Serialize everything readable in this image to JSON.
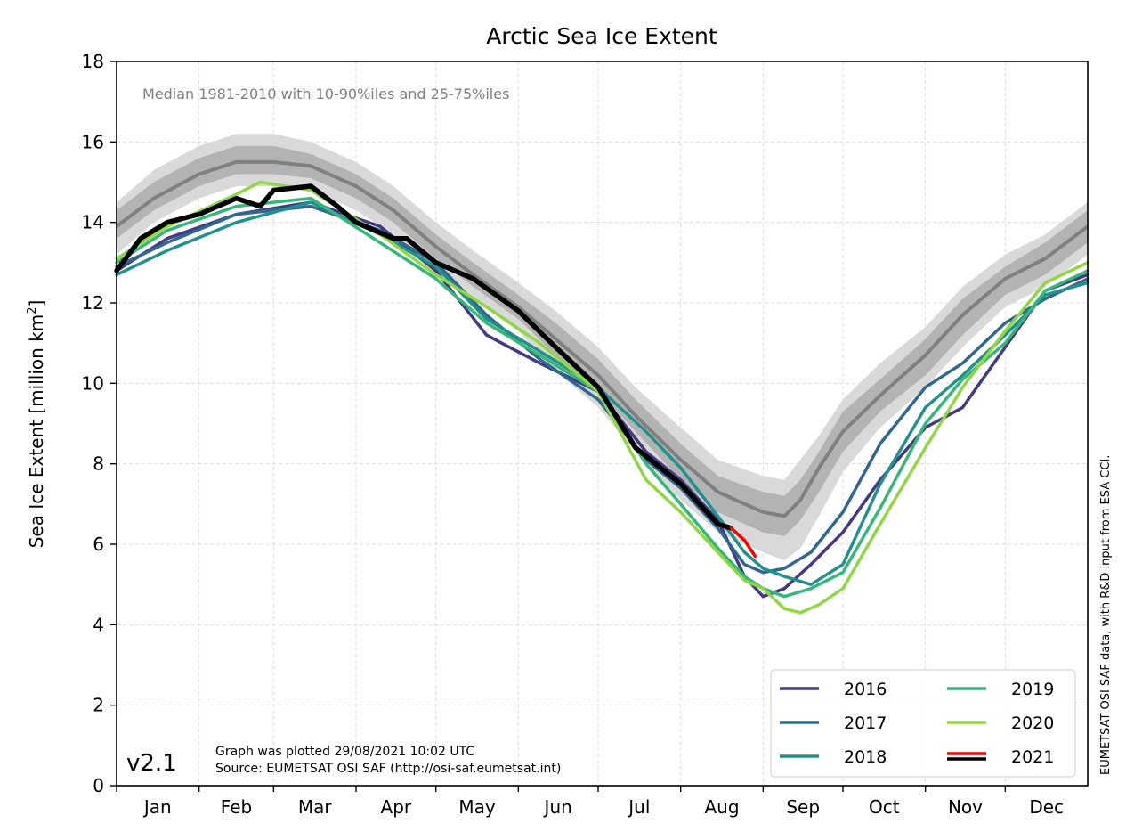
{
  "chart_data": {
    "type": "line",
    "title": "Arctic Sea Ice Extent",
    "subtitle": "Median 1981-2010 with 10-90%iles and 25-75%iles",
    "ylabel_prefix": "Sea Ice Extent [million km",
    "ylabel_sup": "2",
    "ylabel_suffix": "]",
    "ylim": [
      0,
      18
    ],
    "yticks": [
      0,
      2,
      4,
      6,
      8,
      10,
      12,
      14,
      16,
      18
    ],
    "xlim": [
      1,
      366
    ],
    "month_labels": [
      "Jan",
      "Feb",
      "Mar",
      "Apr",
      "May",
      "Jun",
      "Jul",
      "Aug",
      "Sep",
      "Oct",
      "Nov",
      "Dec"
    ],
    "month_starts": [
      1,
      32,
      60,
      91,
      121,
      152,
      182,
      213,
      244,
      274,
      305,
      335
    ],
    "grid": true,
    "legend_position": "bottom-right",
    "version_label": "v2.1",
    "plotted_note": "Graph was plotted 29/08/2021 10:02 UTC",
    "source_note": "Source: EUMETSAT OSI SAF (http://osi-saf.eumetsat.int)",
    "side_credit": "EUMETSAT OSI SAF data, with R&D input from ESA CCI.",
    "climatology": {
      "day": [
        1,
        15,
        32,
        46,
        60,
        74,
        91,
        105,
        121,
        135,
        152,
        166,
        182,
        196,
        213,
        227,
        244,
        252,
        258,
        265,
        274,
        288,
        305,
        319,
        335,
        350,
        366
      ],
      "median": [
        13.9,
        14.6,
        15.2,
        15.5,
        15.5,
        15.4,
        14.9,
        14.3,
        13.4,
        12.7,
        11.9,
        11.1,
        10.2,
        9.2,
        8.1,
        7.3,
        6.8,
        6.7,
        7.1,
        7.9,
        8.8,
        9.7,
        10.7,
        11.7,
        12.6,
        13.1,
        13.9
      ],
      "p25": [
        13.6,
        14.3,
        14.9,
        15.2,
        15.2,
        15.1,
        14.6,
        14.0,
        13.1,
        12.4,
        11.6,
        10.7,
        9.8,
        8.8,
        7.6,
        6.8,
        6.3,
        6.2,
        6.6,
        7.3,
        8.3,
        9.3,
        10.2,
        11.2,
        12.2,
        12.7,
        13.5
      ],
      "p75": [
        14.3,
        15.0,
        15.6,
        15.9,
        15.9,
        15.7,
        15.2,
        14.6,
        13.7,
        13.0,
        12.2,
        11.5,
        10.6,
        9.6,
        8.5,
        7.7,
        7.3,
        7.2,
        7.6,
        8.3,
        9.3,
        10.1,
        11.1,
        12.1,
        12.9,
        13.5,
        14.3
      ],
      "p10": [
        13.2,
        14.0,
        14.6,
        14.9,
        14.9,
        14.8,
        14.3,
        13.7,
        12.8,
        12.1,
        11.3,
        10.3,
        9.4,
        8.3,
        7.1,
        6.3,
        5.8,
        5.6,
        5.9,
        6.7,
        7.8,
        8.9,
        9.9,
        10.9,
        11.9,
        12.4,
        13.2
      ],
      "p90": [
        14.5,
        15.3,
        15.9,
        16.2,
        16.2,
        16.0,
        15.5,
        14.9,
        14.0,
        13.3,
        12.5,
        11.8,
        10.9,
        9.9,
        8.9,
        8.1,
        7.7,
        7.6,
        8.1,
        8.7,
        9.6,
        10.5,
        11.4,
        12.4,
        13.2,
        13.7,
        14.5
      ]
    },
    "series": [
      {
        "name": "2016",
        "color": "#443983",
        "day": [
          1,
          20,
          46,
          74,
          100,
          121,
          140,
          160,
          182,
          200,
          213,
          227,
          237,
          244,
          252,
          262,
          274,
          288,
          305,
          319,
          335,
          350,
          366
        ],
        "values": [
          12.8,
          13.6,
          14.2,
          14.5,
          13.9,
          12.8,
          11.2,
          10.5,
          9.8,
          8.3,
          7.6,
          6.6,
          5.2,
          4.7,
          4.9,
          5.5,
          6.3,
          7.6,
          8.9,
          9.4,
          10.9,
          12.3,
          12.7
        ]
      },
      {
        "name": "2017",
        "color": "#31688e",
        "day": [
          1,
          20,
          46,
          74,
          100,
          121,
          140,
          160,
          182,
          200,
          213,
          227,
          237,
          244,
          252,
          262,
          274,
          288,
          305,
          319,
          335,
          350,
          366
        ],
        "values": [
          12.9,
          13.5,
          14.2,
          14.4,
          13.8,
          13.0,
          11.7,
          10.6,
          9.6,
          8.1,
          7.4,
          6.4,
          5.5,
          5.3,
          5.4,
          5.8,
          6.8,
          8.5,
          9.9,
          10.5,
          11.5,
          12.1,
          12.6
        ]
      },
      {
        "name": "2018",
        "color": "#21918c",
        "day": [
          1,
          20,
          46,
          74,
          100,
          121,
          140,
          160,
          182,
          200,
          213,
          227,
          237,
          244,
          252,
          262,
          274,
          288,
          305,
          319,
          335,
          350,
          366
        ],
        "values": [
          12.7,
          13.3,
          14.0,
          14.5,
          13.7,
          12.9,
          11.6,
          10.8,
          9.9,
          8.8,
          7.9,
          6.7,
          5.8,
          5.4,
          5.2,
          5.0,
          5.5,
          7.5,
          9.4,
          10.2,
          11.2,
          12.2,
          12.5
        ]
      },
      {
        "name": "2019",
        "color": "#35b779",
        "day": [
          1,
          20,
          46,
          74,
          100,
          121,
          140,
          160,
          182,
          200,
          213,
          227,
          237,
          244,
          252,
          262,
          274,
          288,
          305,
          319,
          335,
          350,
          366
        ],
        "values": [
          13.0,
          13.8,
          14.4,
          14.6,
          13.5,
          12.6,
          11.5,
          10.7,
          9.8,
          8.0,
          7.0,
          5.9,
          5.2,
          4.9,
          4.7,
          4.9,
          5.3,
          6.9,
          9.0,
          10.1,
          11.0,
          12.3,
          12.8
        ]
      },
      {
        "name": "2020",
        "color": "#90d743",
        "day": [
          1,
          20,
          46,
          55,
          74,
          100,
          121,
          140,
          160,
          182,
          200,
          213,
          227,
          237,
          244,
          252,
          258,
          265,
          274,
          288,
          305,
          319,
          335,
          350,
          366
        ],
        "values": [
          13.1,
          13.9,
          14.7,
          15.0,
          14.8,
          13.7,
          12.7,
          11.9,
          11.0,
          9.8,
          7.6,
          6.8,
          5.8,
          5.1,
          4.9,
          4.4,
          4.3,
          4.5,
          4.9,
          6.5,
          8.4,
          9.9,
          11.3,
          12.5,
          13.0
        ]
      },
      {
        "name": "2021",
        "color": "#000000",
        "legend_swatch": [
          "#ff0000",
          "#000000"
        ],
        "day": [
          1,
          10,
          20,
          32,
          46,
          55,
          60,
          74,
          84,
          91,
          105,
          110,
          121,
          135,
          152,
          166,
          182,
          196,
          213,
          227,
          232
        ],
        "values": [
          12.8,
          13.6,
          14.0,
          14.2,
          14.6,
          14.4,
          14.8,
          14.9,
          14.4,
          14.0,
          13.6,
          13.6,
          13.0,
          12.6,
          11.8,
          10.9,
          9.9,
          8.4,
          7.5,
          6.5,
          6.4
        ]
      },
      {
        "name": "2021 (recent days)",
        "color": "#ff0000",
        "in_legend": false,
        "day": [
          232,
          237,
          241
        ],
        "values": [
          6.4,
          6.1,
          5.7
        ]
      }
    ]
  }
}
